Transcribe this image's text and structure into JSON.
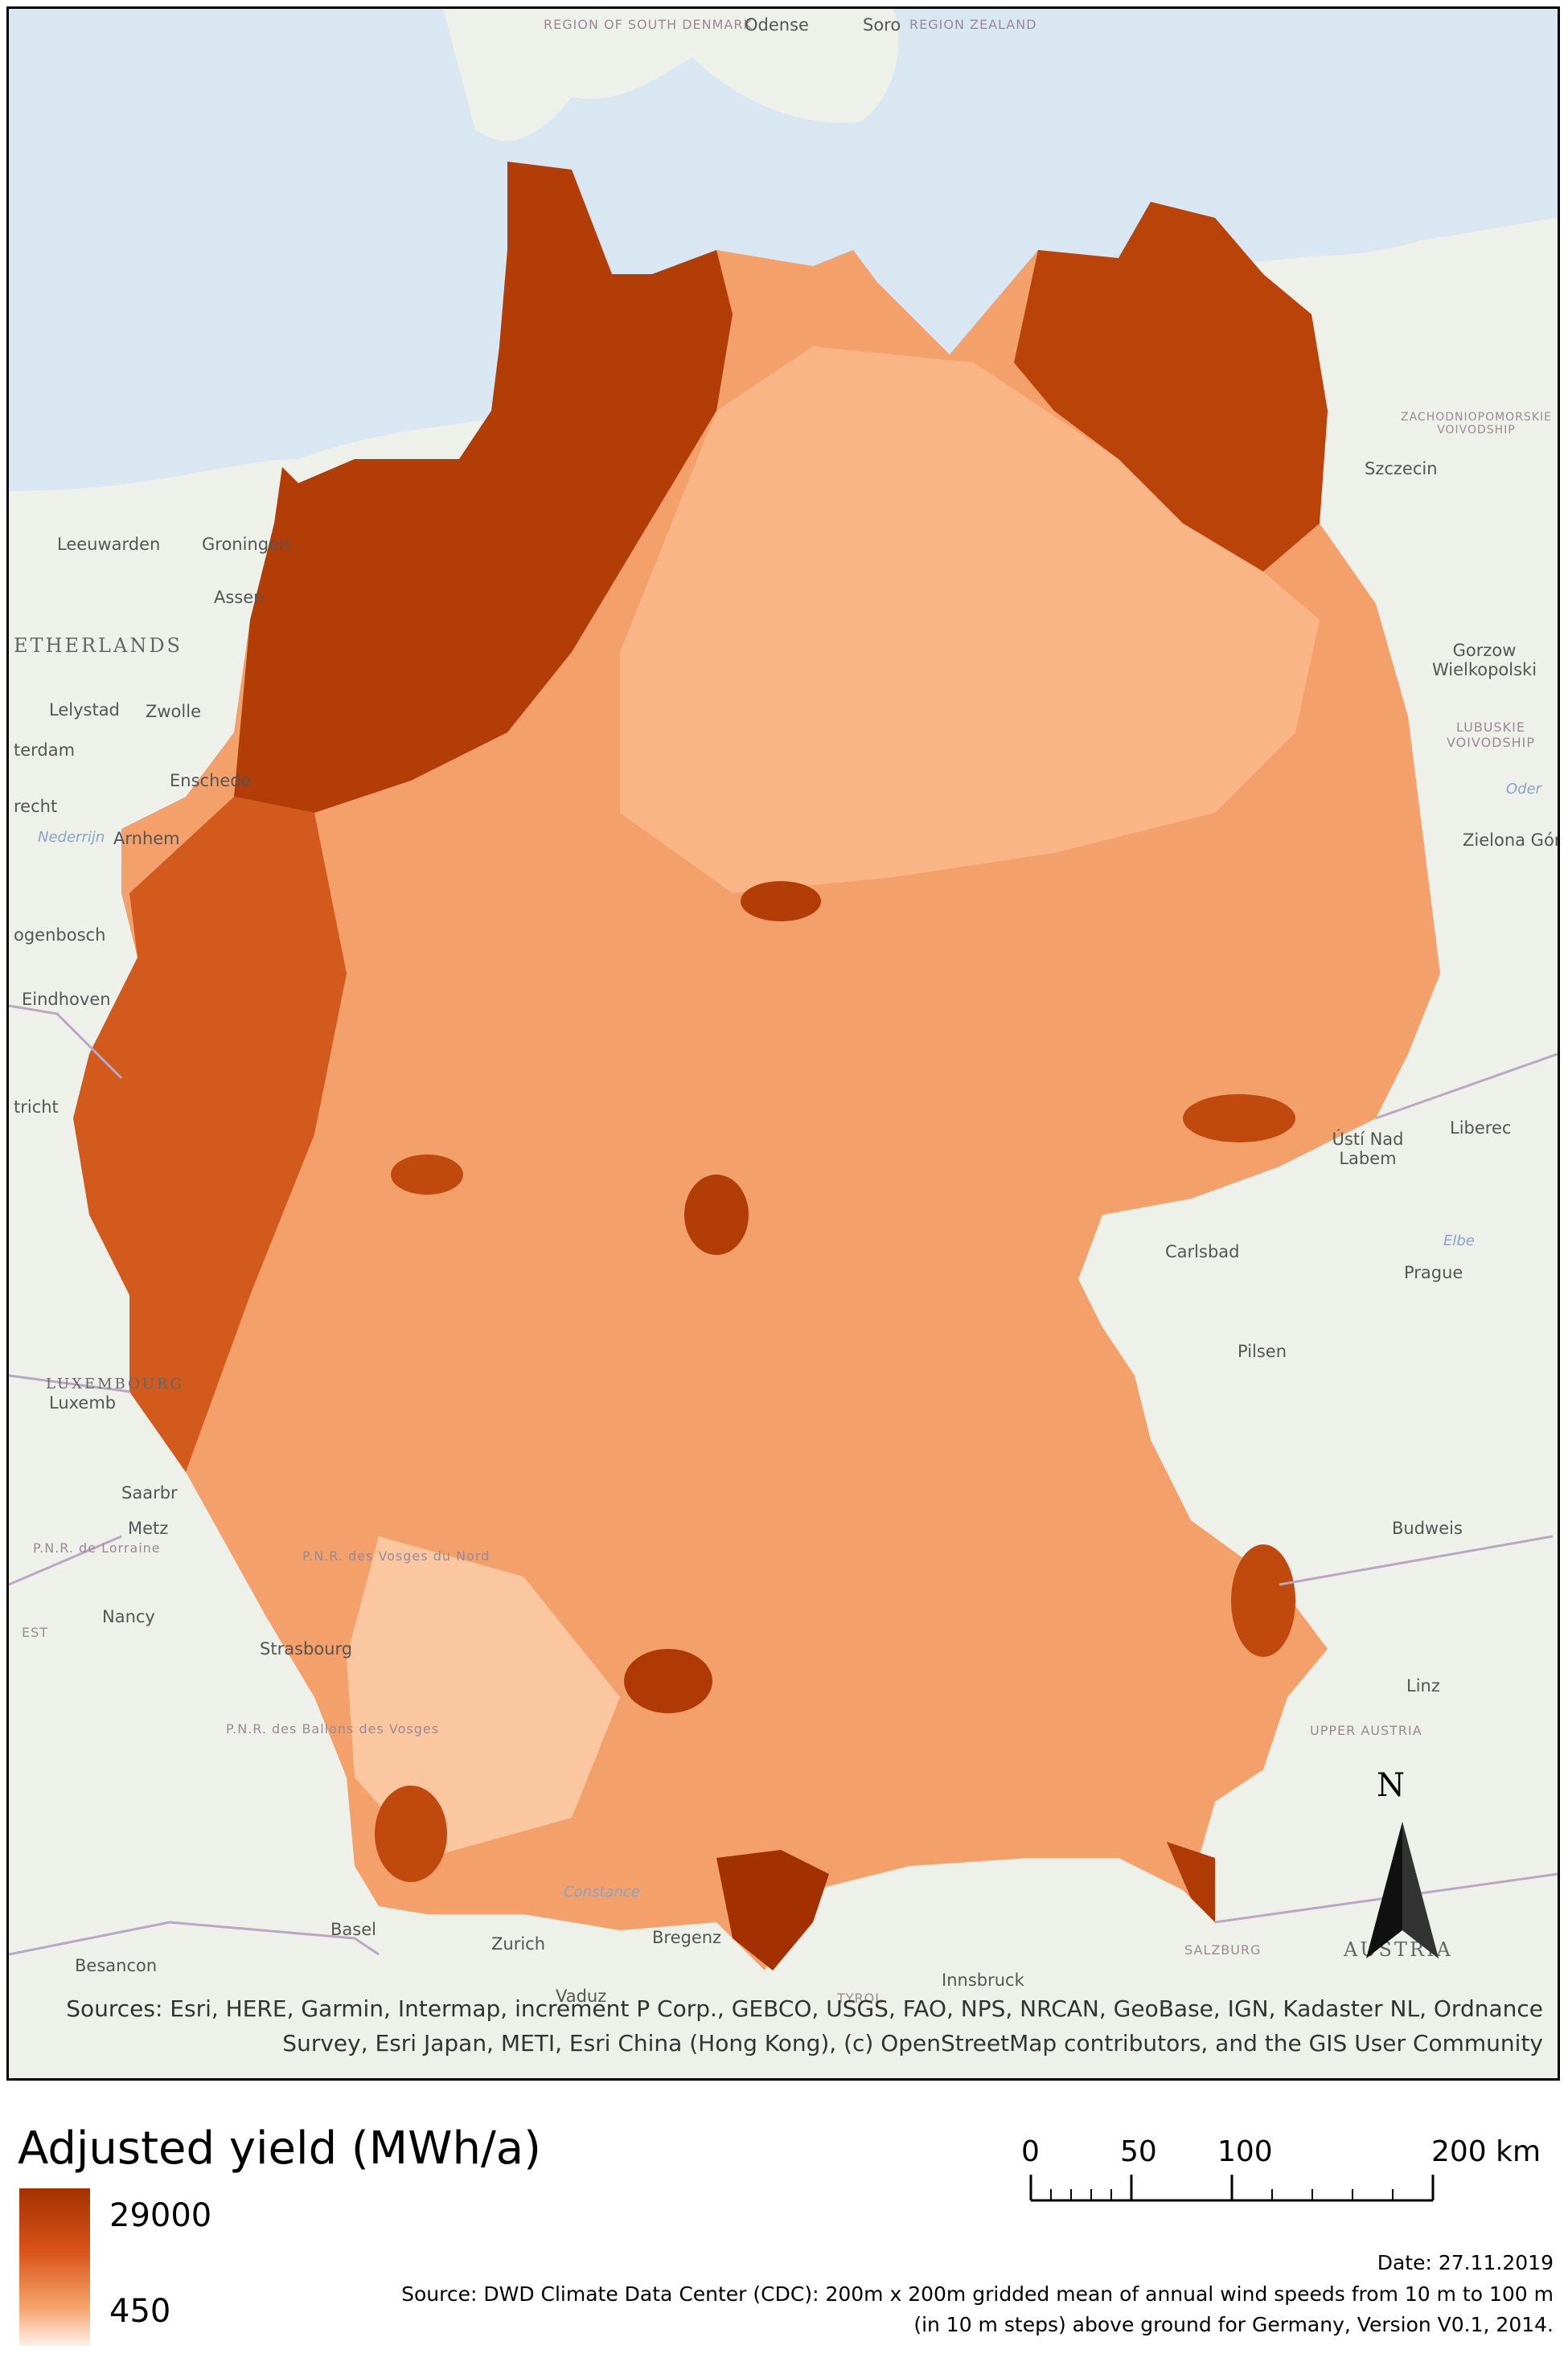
{
  "map": {
    "places": [
      {
        "name": "REGION OF SOUTH DENMARK",
        "kind": "region",
        "line2": ""
      },
      {
        "name": "Odense",
        "kind": "city"
      },
      {
        "name": "Soro",
        "kind": "city"
      },
      {
        "name": "REGION ZEALAND",
        "kind": "region"
      },
      {
        "name": "Leeuwarden",
        "kind": "city"
      },
      {
        "name": "Groningen",
        "kind": "city"
      },
      {
        "name": "Assen",
        "kind": "city"
      },
      {
        "name": "ETHERLANDS",
        "kind": "country"
      },
      {
        "name": "Lelystad",
        "kind": "city"
      },
      {
        "name": "Zwolle",
        "kind": "city"
      },
      {
        "name": "terdam",
        "kind": "city"
      },
      {
        "name": "Enschede",
        "kind": "city"
      },
      {
        "name": "recht",
        "kind": "city"
      },
      {
        "name": "Arnhem",
        "kind": "city"
      },
      {
        "name": "ogenbosch",
        "kind": "city"
      },
      {
        "name": "Eindhoven",
        "kind": "city"
      },
      {
        "name": "tricht",
        "kind": "city"
      },
      {
        "name": "LUXEMBOURG",
        "kind": "country"
      },
      {
        "name": "Luxemb",
        "kind": "city"
      },
      {
        "name": "Saarbr",
        "kind": "city"
      },
      {
        "name": "Metz",
        "kind": "city"
      },
      {
        "name": "P.N.R. de Lorraine",
        "kind": "region"
      },
      {
        "name": "P.N.R. des Vosges du Nord",
        "kind": "region"
      },
      {
        "name": "EST",
        "kind": "region"
      },
      {
        "name": "Nancy",
        "kind": "city"
      },
      {
        "name": "Strasbourg",
        "kind": "city"
      },
      {
        "name": "P.N.R. des Ballons des Vosges",
        "kind": "region"
      },
      {
        "name": "Basel",
        "kind": "city"
      },
      {
        "name": "Zurich",
        "kind": "city"
      },
      {
        "name": "Bregenz",
        "kind": "city"
      },
      {
        "name": "Besancon",
        "kind": "city"
      },
      {
        "name": "Vaduz",
        "kind": "city"
      },
      {
        "name": "TYROL",
        "kind": "region"
      },
      {
        "name": "Innsbruck",
        "kind": "city"
      },
      {
        "name": "SALZBURG",
        "kind": "region"
      },
      {
        "name": "AUSTRIA",
        "kind": "country"
      },
      {
        "name": "Linz",
        "kind": "city"
      },
      {
        "name": "UPPER AUSTRIA",
        "kind": "region"
      },
      {
        "name": "Budweis",
        "kind": "city"
      },
      {
        "name": "Pilsen",
        "kind": "city"
      },
      {
        "name": "Prague",
        "kind": "city"
      },
      {
        "name": "Carlsbad",
        "kind": "city"
      },
      {
        "name": "Ústí Nad Labem",
        "kind": "city"
      },
      {
        "name": "Liberec",
        "kind": "city"
      },
      {
        "name": "Zielona Gór",
        "kind": "city"
      },
      {
        "name": "LUBUSKIE VOIVODSHIP",
        "kind": "region"
      },
      {
        "name": "Gorzow Wielkopolski",
        "kind": "city"
      },
      {
        "name": "Szczecin",
        "kind": "city"
      },
      {
        "name": "ZACHODNIOPOMORSKIE VOIVODSHIP",
        "kind": "region"
      },
      {
        "name": "Constance",
        "kind": "water"
      },
      {
        "name": "Elbe",
        "kind": "water"
      },
      {
        "name": "Oder",
        "kind": "water"
      },
      {
        "name": "Nederrijn",
        "kind": "water"
      }
    ],
    "attribution_line1": "Sources: Esri, HERE, Garmin, Intermap, increment P Corp., GEBCO, USGS, FAO, NPS, NRCAN, GeoBase, IGN, Kadaster NL, Ordnance",
    "attribution_line2": "Survey, Esri Japan, METI, Esri China (Hong Kong), (c) OpenStreetMap contributors, and the GIS User Community",
    "north_label": "N",
    "colors": {
      "water": "#d8e7f2",
      "land": "#eef0ea",
      "dark": "#a83400",
      "mid": "#e47a3e",
      "light": "#f8b080",
      "pale": "#fcd0ad"
    }
  },
  "legend": {
    "title": "Adjusted yield (MWh/a)",
    "max": "29000",
    "min": "450",
    "ramp_colors": [
      "#a33000",
      "#d9541a",
      "#f5a26a",
      "#fff1e6"
    ]
  },
  "scale_bar": {
    "labels": [
      "0",
      "50",
      "100",
      "200 km"
    ],
    "values_km": [
      0,
      50,
      100,
      200
    ]
  },
  "footer": {
    "date": "Date: 27.11.2019",
    "source_line1": "Source: DWD Climate Data Center (CDC): 200m x 200m gridded mean of annual wind speeds from 10 m to 100 m",
    "source_line2": "(in 10 m steps) above ground for Germany, Version V0.1, 2014."
  }
}
